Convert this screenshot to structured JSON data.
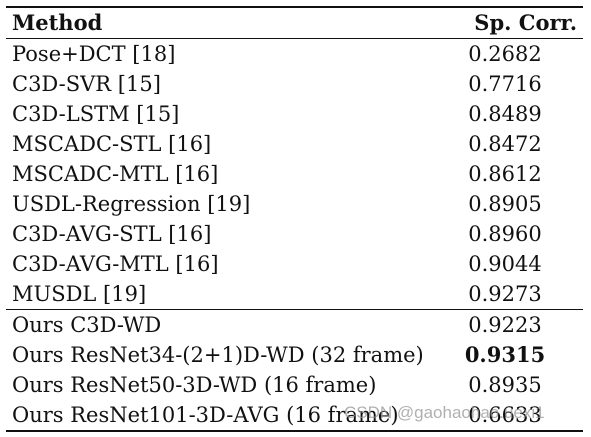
{
  "table": {
    "headers": {
      "method": "Method",
      "score": "Sp. Corr."
    },
    "rows": [
      {
        "method": "Pose+DCT [18]",
        "score": "0.2682",
        "group": 1,
        "bold": false
      },
      {
        "method": "C3D-SVR [15]",
        "score": "0.7716",
        "group": 1,
        "bold": false
      },
      {
        "method": "C3D-LSTM [15]",
        "score": "0.8489",
        "group": 1,
        "bold": false
      },
      {
        "method": "MSCADC-STL [16]",
        "score": "0.8472",
        "group": 1,
        "bold": false
      },
      {
        "method": "MSCADC-MTL [16]",
        "score": "0.8612",
        "group": 1,
        "bold": false
      },
      {
        "method": "USDL-Regression [19]",
        "score": "0.8905",
        "group": 1,
        "bold": false
      },
      {
        "method": "C3D-AVG-STL [16]",
        "score": "0.8960",
        "group": 1,
        "bold": false
      },
      {
        "method": "C3D-AVG-MTL [16]",
        "score": "0.9044",
        "group": 1,
        "bold": false
      },
      {
        "method": "MUSDL [19]",
        "score": "0.9273",
        "group": 1,
        "bold": false
      },
      {
        "method": "Ours C3D-WD",
        "score": "0.9223",
        "group": 2,
        "bold": false
      },
      {
        "method": "Ours ResNet34-(2+1)D-WD (32 frame)",
        "score": "0.9315",
        "group": 2,
        "bold": true
      },
      {
        "method": "Ours ResNet50-3D-WD (16 frame)",
        "score": "0.8935",
        "group": 2,
        "bold": false
      },
      {
        "method": "Ours ResNet101-3D-AVG (16 frame)",
        "score": "0.6633",
        "group": 2,
        "bold": false
      }
    ]
  },
  "watermark": "CSDN @gaohaohao.uexi1"
}
